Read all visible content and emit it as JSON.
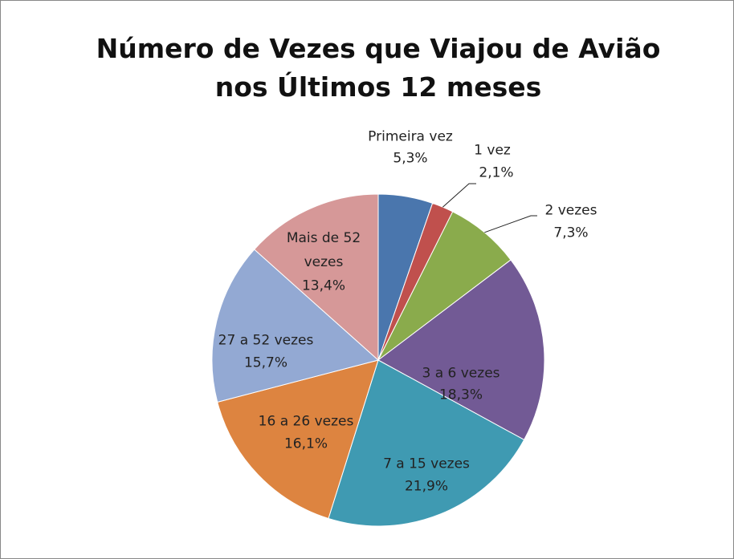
{
  "chart_data": {
    "type": "pie",
    "title": "Número de Vezes que Viajou de Avião nos Últimos 12 meses",
    "categories": [
      "Primeira vez",
      "1 vez",
      "2 vezes",
      "3 a 6 vezes",
      "7 a 15 vezes",
      "16 a 26 vezes",
      "27 a 52 vezes",
      "Mais de 52 vezes"
    ],
    "values": [
      5.3,
      2.1,
      7.3,
      18.3,
      21.9,
      16.1,
      15.7,
      13.4
    ],
    "value_labels": [
      "5,3%",
      "2,1%",
      "7,3%",
      "18,3%",
      "21,9%",
      "16,1%",
      "15,7%",
      "13,4%"
    ],
    "colors": [
      "#4a76ad",
      "#c0504d",
      "#8aab4c",
      "#725a95",
      "#3f9ab2",
      "#dd8440",
      "#93a9d3",
      "#d69898"
    ]
  }
}
